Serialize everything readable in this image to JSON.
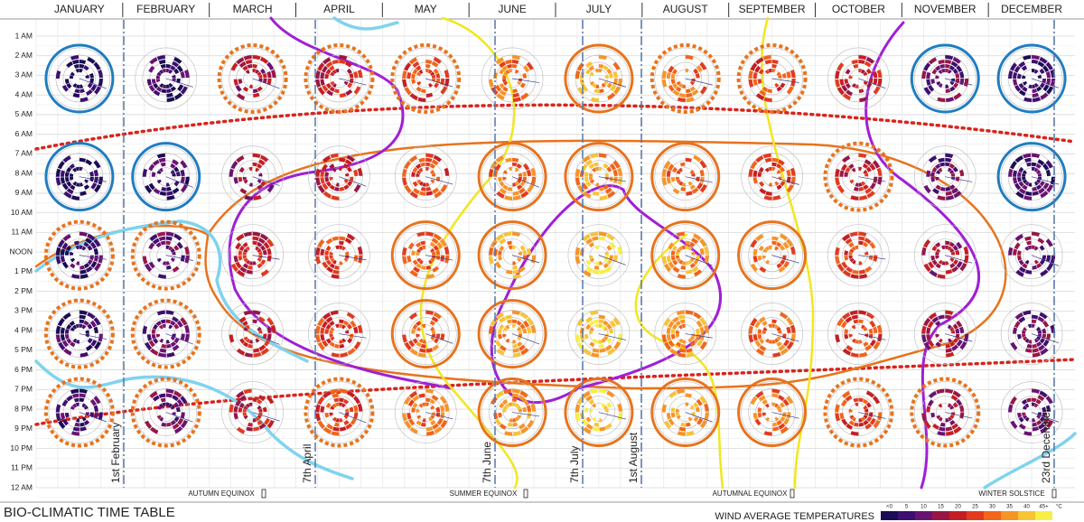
{
  "header": {
    "months": [
      "JANUARY",
      "FEBRUARY",
      "MARCH",
      "APRIL",
      "MAY",
      "JUNE",
      "JULY",
      "AUGUST",
      "SEPTEMBER",
      "OCTOBER",
      "NOVEMBER",
      "DECEMBER"
    ]
  },
  "hours": [
    "1 AM",
    "2 AM",
    "3 AM",
    "4 AM",
    "5 AM",
    "6 AM",
    "7 AM",
    "8 AM",
    "9 AM",
    "10 AM",
    "11 AM",
    "NOON",
    "1 PM",
    "2 PM",
    "3 PM",
    "4 PM",
    "5 PM",
    "6 PM",
    "7 PM",
    "8 PM",
    "9 PM",
    "10 PM",
    "11 PM",
    "12 AM"
  ],
  "date_markers": [
    "1st February",
    "7th April",
    "7th June",
    "7th July",
    "1st August",
    "23rd December"
  ],
  "events": [
    "AUTUMN EQUINOX",
    "SUMMER EQUINOX",
    "AUTUMNAL EQUINOX",
    "WINTER SOLSTICE"
  ],
  "title": "BIO-CLIMATIC TIME TABLE",
  "legend": {
    "title": "WIND AVERAGE TEMPERATURES",
    "labels": [
      "<0",
      "5",
      "10",
      "15",
      "20",
      "25",
      "30",
      "35",
      "40",
      "45+"
    ],
    "unit": "°C",
    "colors": [
      "#1c0c55",
      "#3d0f6e",
      "#6a1272",
      "#981646",
      "#c41e24",
      "#e23a1e",
      "#f2651a",
      "#f79428",
      "#f8c335",
      "#f7ef45"
    ]
  }
}
